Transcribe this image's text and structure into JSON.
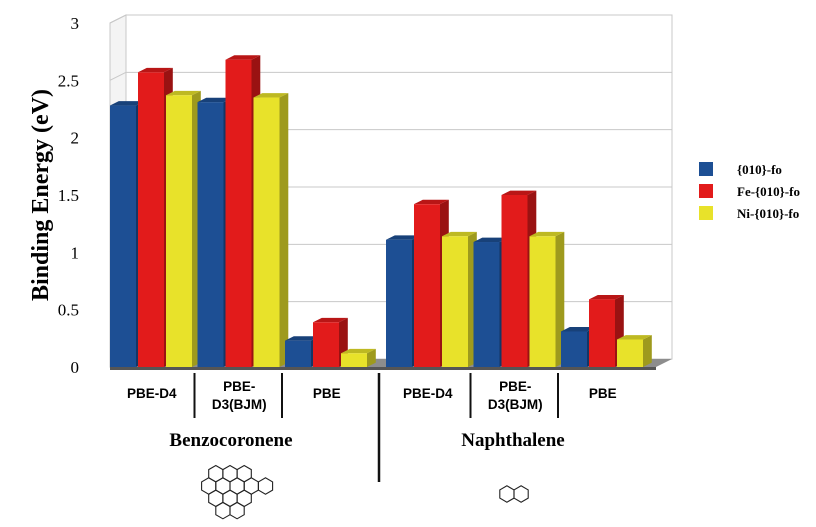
{
  "chart_data": {
    "type": "bar",
    "ylabel": "Binding Energy (eV)",
    "ylim": [
      0,
      3
    ],
    "yticks": [
      "0",
      "0.5",
      "1",
      "1.5",
      "2",
      "2.5",
      "3"
    ],
    "grid": true,
    "legend_position": "right",
    "groups": [
      {
        "name": "Benzocoronene",
        "categories": [
          "PBE-D4",
          "PBE-D3(BJM)",
          "PBE"
        ]
      },
      {
        "name": "Naphthalene",
        "categories": [
          "PBE-D4",
          "PBE-D3(BJM)",
          "PBE"
        ]
      }
    ],
    "series": [
      {
        "name": "{010}-fo",
        "color": "#1d4f94",
        "values": [
          2.28,
          2.31,
          0.23,
          1.11,
          1.09,
          0.31
        ]
      },
      {
        "name": "Fe-{010}-fo",
        "color": "#e21b1b",
        "values": [
          2.57,
          2.68,
          0.39,
          1.42,
          1.5,
          0.59
        ]
      },
      {
        "name": "Ni-{010}-fo",
        "color": "#e8e22a",
        "values": [
          2.37,
          2.35,
          0.12,
          1.14,
          1.14,
          0.24
        ]
      }
    ]
  },
  "icons": {
    "benzocoronene": "benzocoronene-structure-icon",
    "naphthalene": "naphthalene-structure-icon"
  }
}
